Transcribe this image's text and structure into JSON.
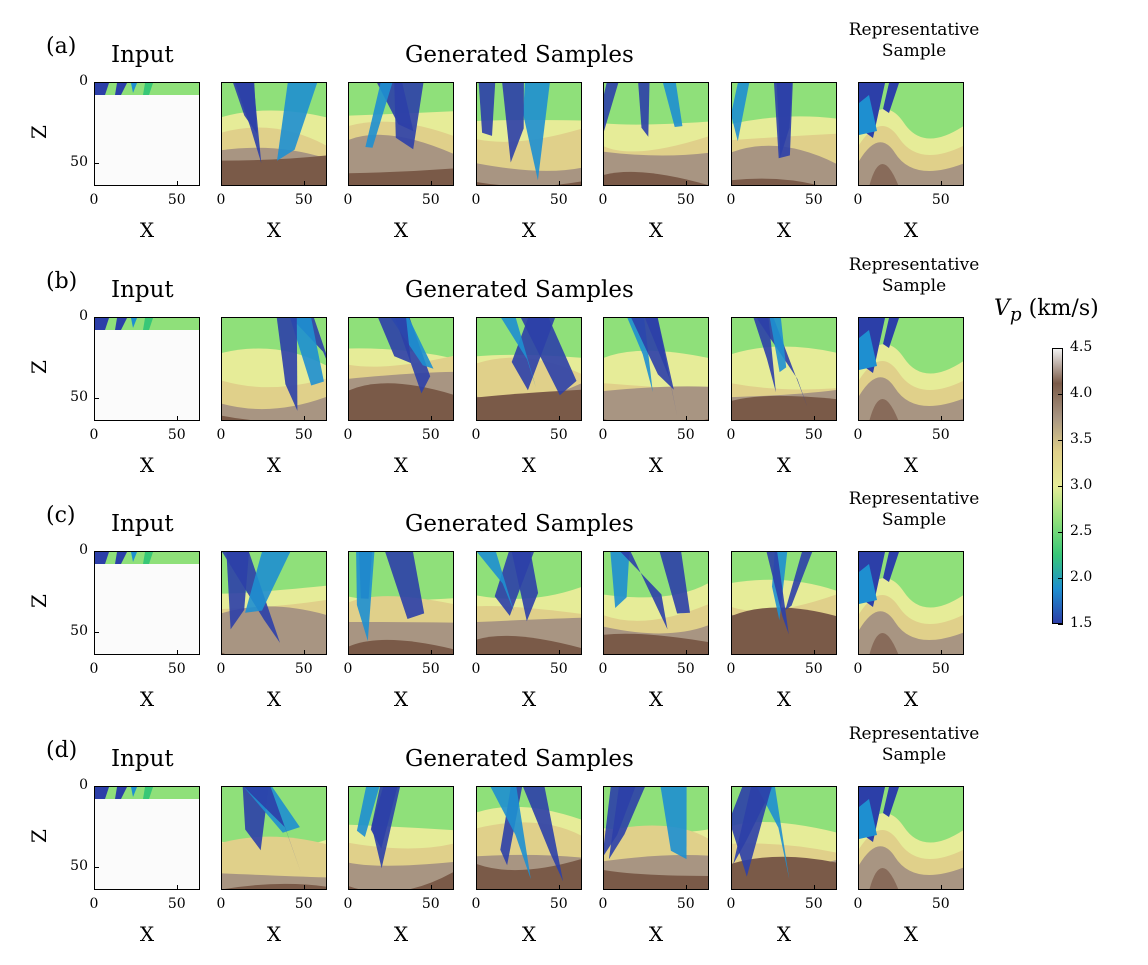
{
  "figure": {
    "row_labels": [
      "(a)",
      "(b)",
      "(c)",
      "(d)"
    ],
    "input_title": "Input",
    "generated_title": "Generated Samples",
    "representative_title": [
      "Representative",
      "Sample"
    ],
    "xlabel": "X",
    "ylabel": "Z",
    "x_ticks": [
      "0",
      "50"
    ],
    "y_ticks": [
      "0",
      "50"
    ]
  },
  "colorbar": {
    "title_symbol": "V",
    "title_subscript": "p",
    "title_unit": "(km/s)",
    "ticks": [
      "4.5",
      "4.0",
      "3.5",
      "3.0",
      "2.5",
      "2.0",
      "1.5"
    ],
    "range": [
      1.5,
      4.5
    ],
    "colors": [
      "#2c3fa8",
      "#1e8fd0",
      "#38c777",
      "#8fe07a",
      "#e6ec98",
      "#e0d08a",
      "#a89582",
      "#7a5a48",
      "#f2f2f2"
    ]
  },
  "chart_data": {
    "type": "heatmap",
    "xlabel": "X",
    "ylabel": "Z",
    "xlim": [
      0,
      64
    ],
    "ylim": [
      64,
      0
    ],
    "colorbar_label": "Vp (km/s)",
    "color_range": [
      1.5,
      4.5
    ],
    "rows": [
      "(a)",
      "(b)",
      "(c)",
      "(d)"
    ],
    "columns": [
      "Input",
      "Generated Samples",
      "Generated Samples",
      "Generated Samples",
      "Generated Samples",
      "Generated Samples",
      "Representative Sample"
    ]
  }
}
